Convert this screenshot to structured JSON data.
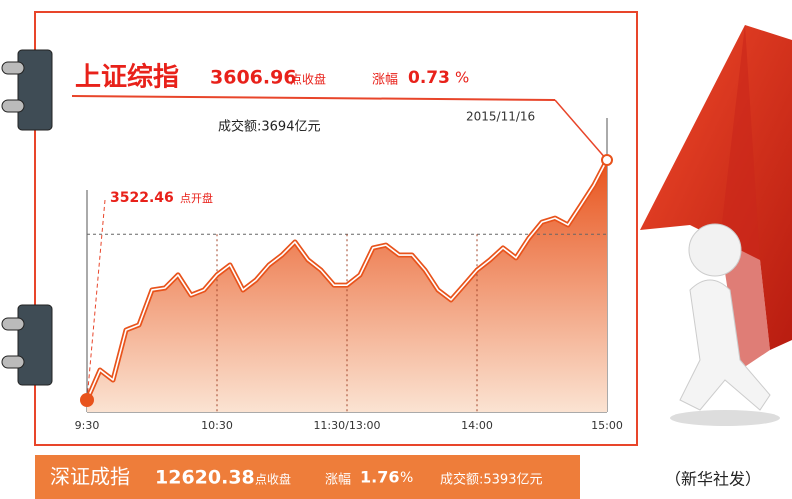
{
  "chart_data": {
    "type": "area",
    "title": "上证综指",
    "close": 3606.96,
    "close_label": "点收盘",
    "change_label": "涨幅",
    "change": 0.73,
    "change_unit": "%",
    "turnover": "成交额:3694亿元",
    "date": "2015/11/16",
    "open": 3522.46,
    "open_label": "点开盘",
    "reference_line": 3580.8,
    "categories": [
      "9:30",
      null,
      null,
      null,
      null,
      null,
      null,
      null,
      null,
      null,
      "10:30",
      null,
      null,
      null,
      null,
      null,
      null,
      null,
      null,
      null,
      "11:30/13:00",
      null,
      null,
      null,
      null,
      null,
      null,
      null,
      null,
      null,
      "14:00",
      null,
      null,
      null,
      null,
      null,
      null,
      null,
      null,
      null,
      "15:00"
    ],
    "values": [
      3522.46,
      3533.0,
      3529.5,
      3547.1,
      3548.9,
      3561.2,
      3561.9,
      3566.5,
      3559.4,
      3561.2,
      3566.5,
      3570.0,
      3561.2,
      3564.7,
      3570.0,
      3573.5,
      3578.1,
      3571.8,
      3568.2,
      3562.9,
      3562.9,
      3566.5,
      3576.0,
      3577.0,
      3573.5,
      3573.5,
      3568.2,
      3561.2,
      3557.7,
      3562.9,
      3568.2,
      3571.8,
      3576.0,
      3572.5,
      3579.5,
      3585.1,
      3586.5,
      3584.1,
      3591.1,
      3598.2,
      3606.96
    ],
    "color": "#e8531c",
    "shenzhen": {
      "name": "深证成指",
      "close": 12620.38,
      "close_label": "点收盘",
      "change_label": "涨幅",
      "change": 1.76,
      "change_unit": "%",
      "turnover": "成交额:5393亿元"
    },
    "credit": "（新华社发）"
  }
}
